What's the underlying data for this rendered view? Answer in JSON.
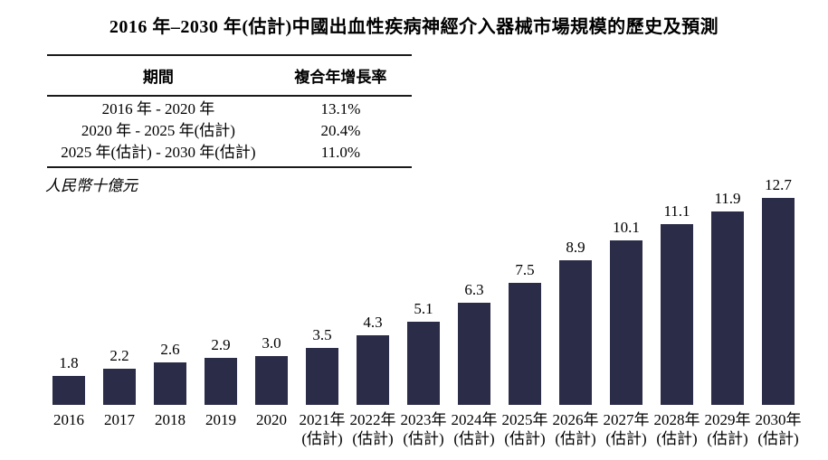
{
  "title": "2016 年–2030 年(估計)中國出血性疾病神經介入器械市場規模的歷史及預測",
  "unit_label": "人民幣十億元",
  "table": {
    "headers": [
      "期間",
      "複合年增長率"
    ],
    "rows": [
      {
        "period": "2016 年 - 2020 年",
        "cagr": "13.1%"
      },
      {
        "period": "2020 年 - 2025 年(估計)",
        "cagr": "20.4%"
      },
      {
        "period": "2025 年(估計) - 2030 年(估計)",
        "cagr": "11.0%"
      }
    ]
  },
  "chart_data": {
    "type": "bar",
    "title": "2016 年–2030 年(估計)中國出血性疾病神經介入器械市場規模的歷史及預測",
    "ylabel": "人民幣十億元",
    "xlabel": "",
    "categories": [
      "2016",
      "2017",
      "2018",
      "2019",
      "2020",
      "2021年(估計)",
      "2022年(估計)",
      "2023年(估計)",
      "2024年(估計)",
      "2025年(估計)",
      "2026年(估計)",
      "2027年(估計)",
      "2028年(估計)",
      "2029年(估計)",
      "2030年(估計)"
    ],
    "tick_lines": [
      [
        "2016"
      ],
      [
        "2017"
      ],
      [
        "2018"
      ],
      [
        "2019"
      ],
      [
        "2020"
      ],
      [
        "2021年",
        "(估計)"
      ],
      [
        "2022年",
        "(估計)"
      ],
      [
        "2023年",
        "(估計)"
      ],
      [
        "2024年",
        "(估計)"
      ],
      [
        "2025年",
        "(估計)"
      ],
      [
        "2026年",
        "(估計)"
      ],
      [
        "2027年",
        "(估計)"
      ],
      [
        "2028年",
        "(估計)"
      ],
      [
        "2029年",
        "(估計)"
      ],
      [
        "2030年",
        "(估計)"
      ]
    ],
    "values": [
      1.8,
      2.2,
      2.6,
      2.9,
      3.0,
      3.5,
      4.3,
      5.1,
      6.3,
      7.5,
      8.9,
      10.1,
      11.1,
      11.9,
      12.7
    ],
    "value_labels": [
      "1.8",
      "2.2",
      "2.6",
      "2.9",
      "3.0",
      "3.5",
      "4.3",
      "5.1",
      "6.3",
      "7.5",
      "8.9",
      "10.1",
      "11.1",
      "11.9",
      "12.7"
    ],
    "bar_color": "#2b2c47",
    "ylim": [
      0,
      13
    ],
    "grid": false,
    "legend_position": "none"
  }
}
